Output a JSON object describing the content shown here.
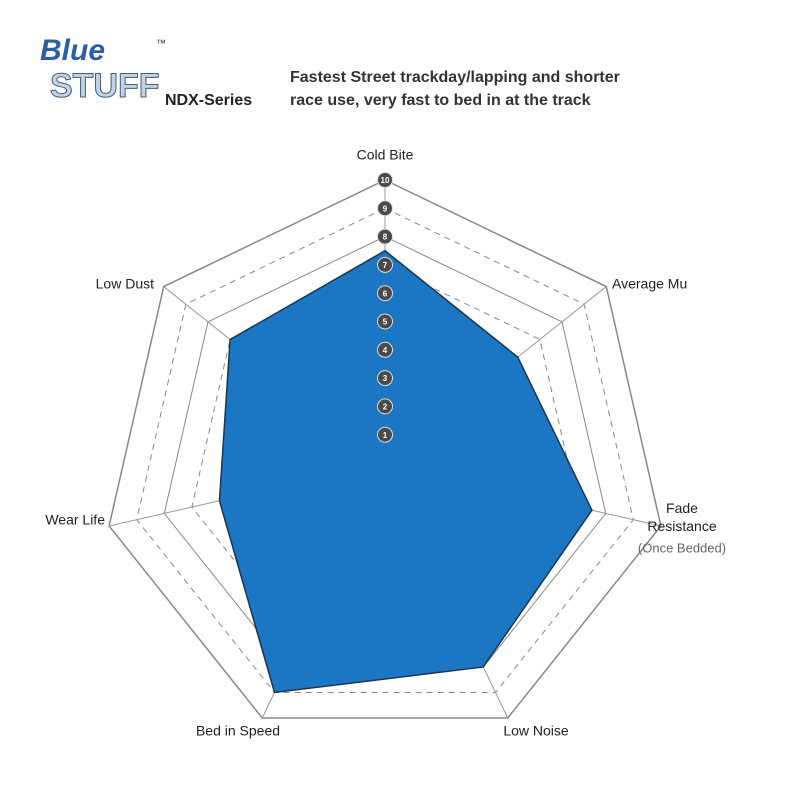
{
  "header": {
    "logo_top": "Blue",
    "logo_bottom": "STUFF",
    "trademark": "™",
    "series": "NDX-Series",
    "description": [
      "Fastest Street trackday/lapping and shorter",
      "race use, very fast to bed in at the track"
    ]
  },
  "chart_data": {
    "type": "radar",
    "categories": [
      "Cold Bite",
      "Average Mu",
      "Fade Resistance",
      "Low Noise",
      "Bed in Speed",
      "Wear Life",
      "Low Dust"
    ],
    "category_note": {
      "index": 2,
      "text": "(Once Bedded)"
    },
    "values": [
      7.5,
      6,
      7.5,
      8,
      9,
      6,
      7
    ],
    "color": "#1b77c3",
    "rlim": [
      0,
      10
    ],
    "rticks": [
      1,
      2,
      3,
      4,
      5,
      6,
      7,
      8,
      9,
      10
    ]
  }
}
